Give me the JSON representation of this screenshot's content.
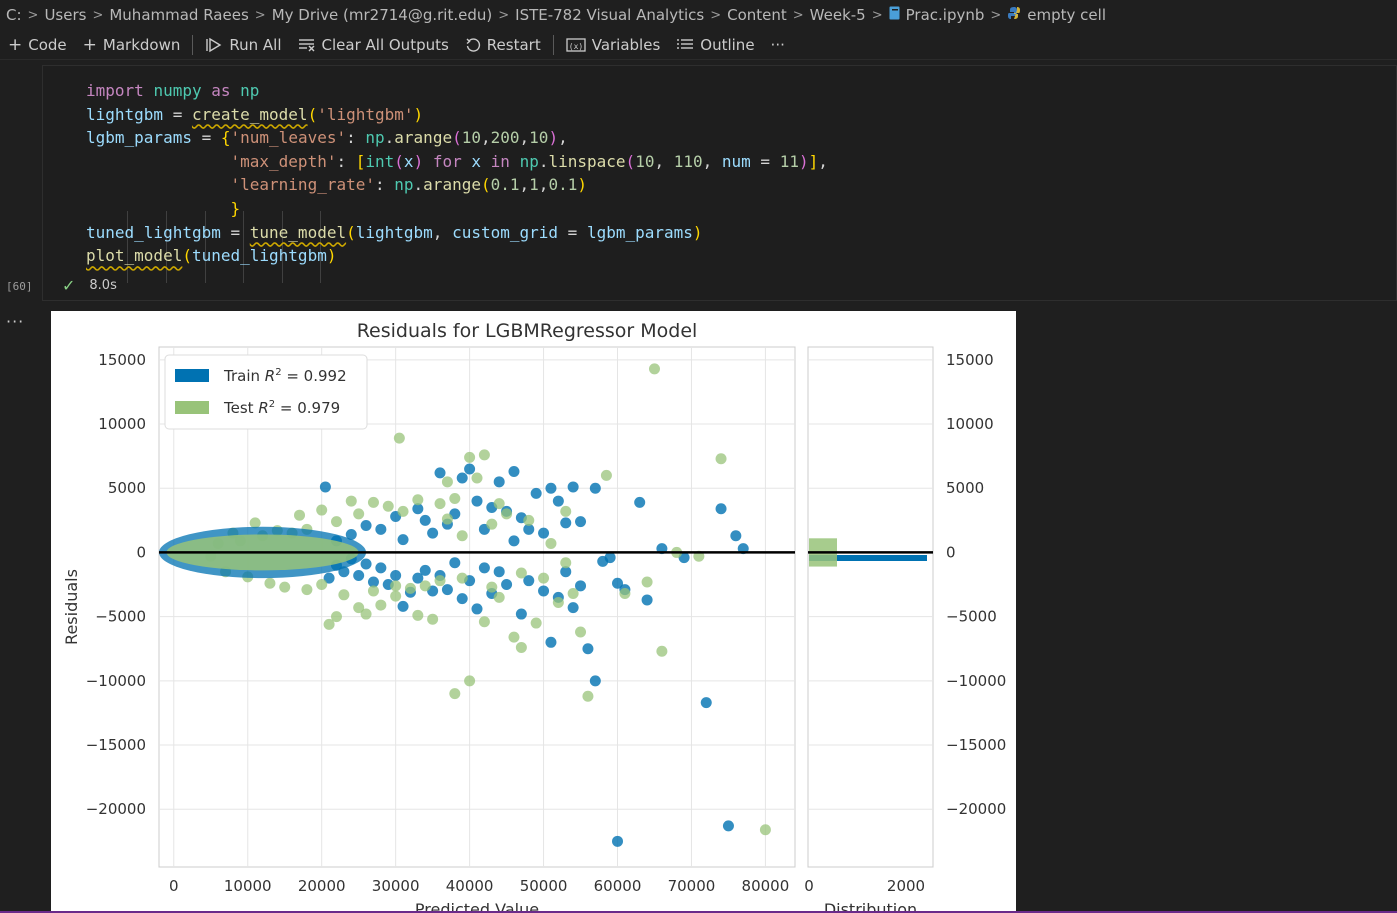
{
  "breadcrumb": [
    "C:",
    "Users",
    "Muhammad Raees",
    "My Drive (mr2714@g.rit.edu)",
    "ISTE-782 Visual Analytics",
    "Content",
    "Week-5",
    "Prac.ipynb",
    "empty cell"
  ],
  "toolbar": {
    "code": "Code",
    "markdown": "Markdown",
    "run_all": "Run All",
    "clear_outputs": "Clear All Outputs",
    "restart": "Restart",
    "variables": "Variables",
    "outline": "Outline",
    "more": "···"
  },
  "cell": {
    "execution_count": "[60]",
    "duration": "8.0s",
    "output_more": "···",
    "code_lines": [
      "import numpy as np",
      "lightgbm = create_model('lightgbm')",
      "lgbm_params = {'num_leaves': np.arange(10,200,10),",
      "               'max_depth': [int(x) for x in np.linspace(10, 110, num = 11)],",
      "               'learning_rate': np.arange(0.1,1,0.1)",
      "               }",
      "tuned_lightgbm = tune_model(lightgbm, custom_grid = lgbm_params)",
      "plot_model(tuned_lightgbm)"
    ]
  },
  "colors": {
    "train": "#0072b2",
    "test": "#98c379",
    "zero_line": "#000000"
  },
  "chart_data": {
    "type": "scatter",
    "title": "Residuals for LGBMRegressor Model",
    "xlabel": "Predicted Value",
    "ylabel": "Residuals",
    "xlim": [
      -2000,
      84000
    ],
    "ylim": [
      -24500,
      16000
    ],
    "xticks": [
      "0",
      "10000",
      "20000",
      "30000",
      "40000",
      "50000",
      "60000",
      "70000",
      "80000"
    ],
    "yticks": [
      "15000",
      "10000",
      "5000",
      "0",
      "−5000",
      "−10000",
      "−15000",
      "−20000"
    ],
    "legend": {
      "placement": "top-left",
      "entries": [
        {
          "name": "Train",
          "r2_text": "= 0.992"
        },
        {
          "name": "Test",
          "r2_text": "= 0.979"
        }
      ]
    },
    "hist_xlabel": "Distribution",
    "hist_xticks": [
      "0",
      "2000"
    ],
    "series": [
      {
        "name": "Train",
        "points": [
          [
            20500,
            5100
          ],
          [
            31000,
            1000
          ],
          [
            34000,
            2500
          ],
          [
            36000,
            6200
          ],
          [
            38000,
            3000
          ],
          [
            39000,
            5800
          ],
          [
            40000,
            6500
          ],
          [
            41000,
            4000
          ],
          [
            43000,
            3500
          ],
          [
            44000,
            5500
          ],
          [
            45000,
            3200
          ],
          [
            46000,
            6300
          ],
          [
            47000,
            2700
          ],
          [
            48000,
            1800
          ],
          [
            49000,
            4600
          ],
          [
            50000,
            1500
          ],
          [
            51000,
            5000
          ],
          [
            52000,
            4000
          ],
          [
            53000,
            2300
          ],
          [
            54000,
            5100
          ],
          [
            55000,
            2400
          ],
          [
            57000,
            5000
          ],
          [
            59000,
            -400
          ],
          [
            60000,
            -2400
          ],
          [
            61000,
            -2900
          ],
          [
            63000,
            3900
          ],
          [
            64000,
            -3700
          ],
          [
            66000,
            300
          ],
          [
            69000,
            -400
          ],
          [
            72000,
            -11700
          ],
          [
            74000,
            3400
          ],
          [
            75000,
            -21300
          ],
          [
            76000,
            1300
          ],
          [
            77000,
            300
          ],
          [
            60000,
            -22500
          ],
          [
            57000,
            -10000
          ],
          [
            56000,
            -7500
          ],
          [
            54000,
            -4300
          ],
          [
            52000,
            -3500
          ],
          [
            51000,
            -7000
          ],
          [
            50000,
            -3000
          ],
          [
            48000,
            -2200
          ],
          [
            47000,
            -4800
          ],
          [
            45000,
            -2500
          ],
          [
            44000,
            -1500
          ],
          [
            43000,
            -3200
          ],
          [
            42000,
            -1200
          ],
          [
            41000,
            -4400
          ],
          [
            40000,
            -2200
          ],
          [
            39000,
            -3600
          ],
          [
            38000,
            -800
          ],
          [
            37000,
            -2900
          ],
          [
            36000,
            -1800
          ],
          [
            35000,
            -3000
          ],
          [
            34000,
            -1400
          ],
          [
            33000,
            -2000
          ],
          [
            32000,
            -3100
          ],
          [
            31000,
            -4200
          ],
          [
            30000,
            -1800
          ],
          [
            29000,
            -2500
          ],
          [
            28000,
            -1200
          ],
          [
            27000,
            -2300
          ],
          [
            26000,
            -900
          ],
          [
            25000,
            -1800
          ],
          [
            24000,
            -500
          ],
          [
            23000,
            -1500
          ],
          [
            22000,
            -1000
          ],
          [
            21000,
            -2000
          ],
          [
            37000,
            2200
          ],
          [
            35000,
            1500
          ],
          [
            33000,
            3400
          ],
          [
            42000,
            1800
          ],
          [
            46000,
            900
          ],
          [
            53000,
            -1500
          ],
          [
            55000,
            -2600
          ],
          [
            58000,
            -700
          ],
          [
            30000,
            2800
          ],
          [
            28000,
            1800
          ],
          [
            26000,
            2100
          ],
          [
            24000,
            1400
          ],
          [
            22000,
            900
          ]
        ]
      },
      {
        "name": "Test",
        "points": [
          [
            30500,
            8900
          ],
          [
            37000,
            5500
          ],
          [
            40000,
            7400
          ],
          [
            41000,
            5800
          ],
          [
            42000,
            7600
          ],
          [
            38000,
            4200
          ],
          [
            36000,
            3800
          ],
          [
            58500,
            6000
          ],
          [
            65000,
            14300
          ],
          [
            74000,
            7300
          ],
          [
            80000,
            -21600
          ],
          [
            66000,
            -7700
          ],
          [
            56000,
            -11200
          ],
          [
            38000,
            -11000
          ],
          [
            40000,
            -10000
          ],
          [
            46000,
            -6600
          ],
          [
            47000,
            -7400
          ],
          [
            49000,
            -5500
          ],
          [
            55000,
            -6200
          ],
          [
            54000,
            -3200
          ],
          [
            52000,
            -3900
          ],
          [
            44000,
            -3500
          ],
          [
            42000,
            -5400
          ],
          [
            35000,
            -5200
          ],
          [
            33000,
            -4900
          ],
          [
            28000,
            -4100
          ],
          [
            26000,
            -4800
          ],
          [
            22000,
            -5000
          ],
          [
            21000,
            -5600
          ],
          [
            25000,
            -4300
          ],
          [
            30000,
            -3400
          ],
          [
            32000,
            -2800
          ],
          [
            34000,
            -2600
          ],
          [
            36000,
            -2200
          ],
          [
            39000,
            -2000
          ],
          [
            43000,
            -2700
          ],
          [
            47000,
            -1600
          ],
          [
            50000,
            -2000
          ],
          [
            51000,
            700
          ],
          [
            53000,
            -800
          ],
          [
            48000,
            2500
          ],
          [
            45000,
            3000
          ],
          [
            43000,
            2200
          ],
          [
            39000,
            1300
          ],
          [
            37000,
            2600
          ],
          [
            33000,
            4100
          ],
          [
            31000,
            3200
          ],
          [
            29000,
            3600
          ],
          [
            27000,
            3900
          ],
          [
            25000,
            3000
          ],
          [
            24000,
            4000
          ],
          [
            22000,
            2400
          ],
          [
            20000,
            3300
          ],
          [
            18000,
            1800
          ],
          [
            17000,
            2900
          ],
          [
            16000,
            1500
          ],
          [
            14000,
            1700
          ],
          [
            12000,
            1300
          ],
          [
            11000,
            2300
          ],
          [
            9000,
            900
          ],
          [
            8000,
            1500
          ],
          [
            6000,
            700
          ],
          [
            5000,
            -300
          ],
          [
            7000,
            -1500
          ],
          [
            10000,
            -1900
          ],
          [
            13000,
            -2400
          ],
          [
            15000,
            -2700
          ],
          [
            18000,
            -2900
          ],
          [
            20000,
            -2500
          ],
          [
            23000,
            -3300
          ],
          [
            27000,
            -3000
          ],
          [
            30000,
            -2600
          ],
          [
            68000,
            0
          ],
          [
            71000,
            -300
          ],
          [
            64000,
            -2300
          ],
          [
            61000,
            -3200
          ],
          [
            53000,
            3200
          ],
          [
            44000,
            3800
          ]
        ]
      }
    ]
  }
}
